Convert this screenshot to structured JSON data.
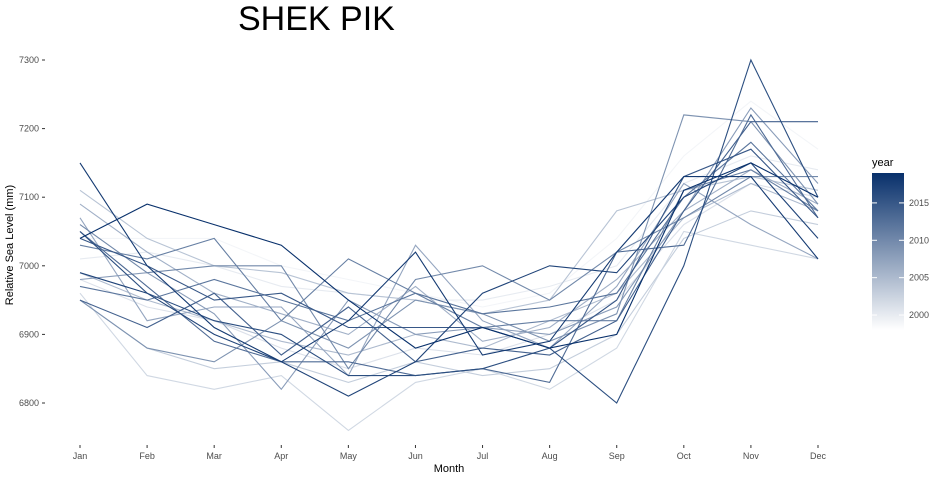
{
  "chart_data": {
    "type": "line",
    "title": "SHEK PIK",
    "xlabel": "Month",
    "ylabel": "Relative Sea Level (mm)",
    "categories": [
      "Jan",
      "Feb",
      "Mar",
      "Apr",
      "May",
      "Jun",
      "Jul",
      "Aug",
      "Sep",
      "Oct",
      "Nov",
      "Dec"
    ],
    "ylim": [
      6740,
      7320
    ],
    "yticks": [
      6800,
      6900,
      7000,
      7100,
      7200,
      7300
    ],
    "grid": false,
    "color_scale": {
      "low": "#ffffff",
      "high": "#08306b",
      "min_year": 1998,
      "max_year": 2019
    },
    "legend": {
      "title": "year",
      "position": "right",
      "ticks": [
        2000,
        2005,
        2010,
        2015
      ]
    },
    "series": [
      {
        "year": 1998,
        "values": [
          6900,
          6900,
          6940,
          6960,
          6900,
          6910,
          6880,
          6910,
          6960,
          7200,
          7190,
          7120
        ]
      },
      {
        "year": 1999,
        "values": [
          7040,
          7040,
          7040,
          7000,
          6980,
          6960,
          6940,
          6960,
          7040,
          7160,
          7240,
          7170
        ]
      },
      {
        "year": 2000,
        "values": [
          7010,
          7020,
          7000,
          6970,
          6960,
          6950,
          6950,
          6970,
          7000,
          7120,
          7160,
          7140
        ]
      },
      {
        "year": 2001,
        "values": [
          6980,
          6940,
          6920,
          6880,
          6850,
          6880,
          6870,
          6900,
          6950,
          7060,
          7120,
          7100
        ]
      },
      {
        "year": 2002,
        "values": [
          6960,
          6840,
          6820,
          6840,
          6760,
          6830,
          6850,
          6820,
          6880,
          7050,
          7030,
          7010
        ]
      },
      {
        "year": 2003,
        "values": [
          6950,
          6880,
          6850,
          6860,
          6830,
          6860,
          6840,
          6850,
          6900,
          7040,
          7080,
          7060
        ]
      },
      {
        "year": 2004,
        "values": [
          7110,
          7040,
          7000,
          6990,
          6960,
          6950,
          6930,
          6950,
          7080,
          7110,
          7130,
          7110
        ]
      },
      {
        "year": 2005,
        "values": [
          6990,
          6950,
          6920,
          6890,
          6870,
          6900,
          6880,
          6920,
          6960,
          7070,
          7120,
          7080
        ]
      },
      {
        "year": 2006,
        "values": [
          7090,
          7020,
          6960,
          6930,
          6900,
          6970,
          6890,
          6910,
          6980,
          7080,
          7140,
          7090
        ]
      },
      {
        "year": 2007,
        "values": [
          7070,
          6920,
          6940,
          6940,
          6840,
          7030,
          6920,
          6880,
          6970,
          7120,
          7060,
          7010
        ]
      },
      {
        "year": 2008,
        "values": [
          6980,
          6990,
          6930,
          6820,
          6950,
          6900,
          6910,
          6900,
          6940,
          7080,
          7230,
          7120
        ]
      },
      {
        "year": 2009,
        "values": [
          6950,
          6880,
          6860,
          6920,
          6880,
          6950,
          6930,
          6890,
          6930,
          7220,
          7210,
          7090
        ]
      },
      {
        "year": 2010,
        "values": [
          7060,
          6990,
          7000,
          7000,
          6850,
          6980,
          7000,
          6950,
          7020,
          7070,
          7130,
          7130
        ]
      },
      {
        "year": 2011,
        "values": [
          7030,
          7010,
          7040,
          6920,
          7010,
          6960,
          6910,
          6920,
          6920,
          7110,
          7140,
          7080
        ]
      },
      {
        "year": 2012,
        "values": [
          6970,
          6950,
          6980,
          6950,
          6920,
          6960,
          6930,
          6940,
          6960,
          7100,
          7180,
          7080
        ]
      },
      {
        "year": 2013,
        "values": [
          7050,
          6970,
          6890,
          6860,
          6860,
          6840,
          6850,
          6830,
          7020,
          7030,
          7220,
          7070
        ]
      },
      {
        "year": 2014,
        "values": [
          6950,
          6910,
          6960,
          6870,
          6940,
          6860,
          6880,
          6870,
          6920,
          7080,
          7210,
          7210
        ]
      },
      {
        "year": 2015,
        "values": [
          7040,
          7000,
          6950,
          6960,
          6910,
          6910,
          6910,
          6880,
          6950,
          7130,
          7170,
          7070
        ]
      },
      {
        "year": 2016,
        "values": [
          7050,
          6960,
          6920,
          6900,
          6840,
          6840,
          6850,
          6880,
          6800,
          7000,
          7300,
          7100
        ]
      },
      {
        "year": 2017,
        "values": [
          6990,
          6960,
          6900,
          6860,
          6810,
          6860,
          6960,
          7000,
          6990,
          7100,
          7150,
          7040
        ]
      },
      {
        "year": 2018,
        "values": [
          7150,
          7000,
          6910,
          6860,
          6920,
          7020,
          6870,
          6890,
          7020,
          7130,
          7130,
          7010
        ]
      },
      {
        "year": 2019,
        "values": [
          7040,
          7090,
          7060,
          7030,
          6950,
          6880,
          6910,
          6880,
          6900,
          7110,
          7150,
          7100
        ]
      }
    ]
  }
}
